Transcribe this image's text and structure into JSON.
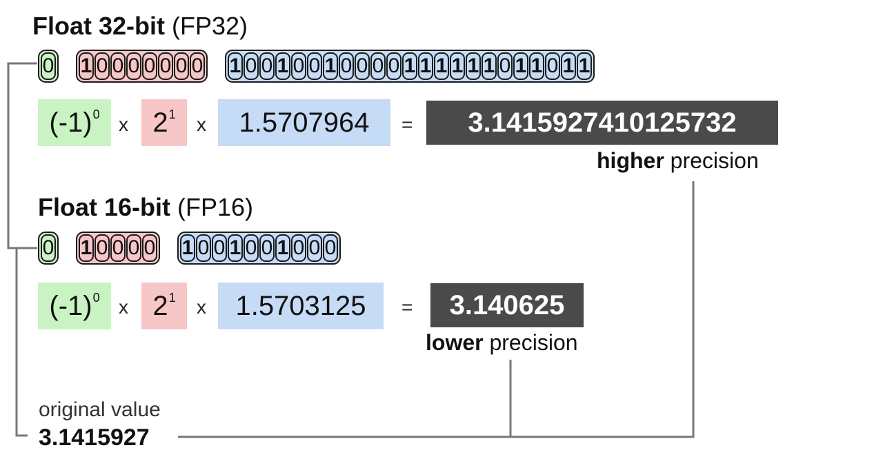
{
  "fp32": {
    "title_strong": "Float 32-bit",
    "title_sub": "(FP32)",
    "sign_bits": "0",
    "exponent_bits": "10000000",
    "mantissa_bits": "10010010000111111011011",
    "sign_factor": "(-1)",
    "sign_exp": "0",
    "exp_base": "2",
    "exp_power": "1",
    "mantissa_value": "1.5707964",
    "times": "x",
    "equals": "=",
    "result": "3.1415927410125732",
    "precision_strong": "higher",
    "precision_rest": "precision"
  },
  "fp16": {
    "title_strong": "Float 16-bit",
    "title_sub": "(FP16)",
    "sign_bits": "0",
    "exponent_bits": "10000",
    "mantissa_bits": "1001001000",
    "sign_factor": "(-1)",
    "sign_exp": "0",
    "exp_base": "2",
    "exp_power": "1",
    "mantissa_value": "1.5703125",
    "times": "x",
    "equals": "=",
    "result": "3.140625",
    "precision_strong": "lower",
    "precision_rest": "precision"
  },
  "original": {
    "label": "original value",
    "value": "3.1415927"
  },
  "colors": {
    "sign": "#c9f3c3",
    "exponent": "#f7c6c6",
    "mantissa": "#c6dcf6",
    "result_bg": "#4a4a4a",
    "connector": "#777777"
  }
}
